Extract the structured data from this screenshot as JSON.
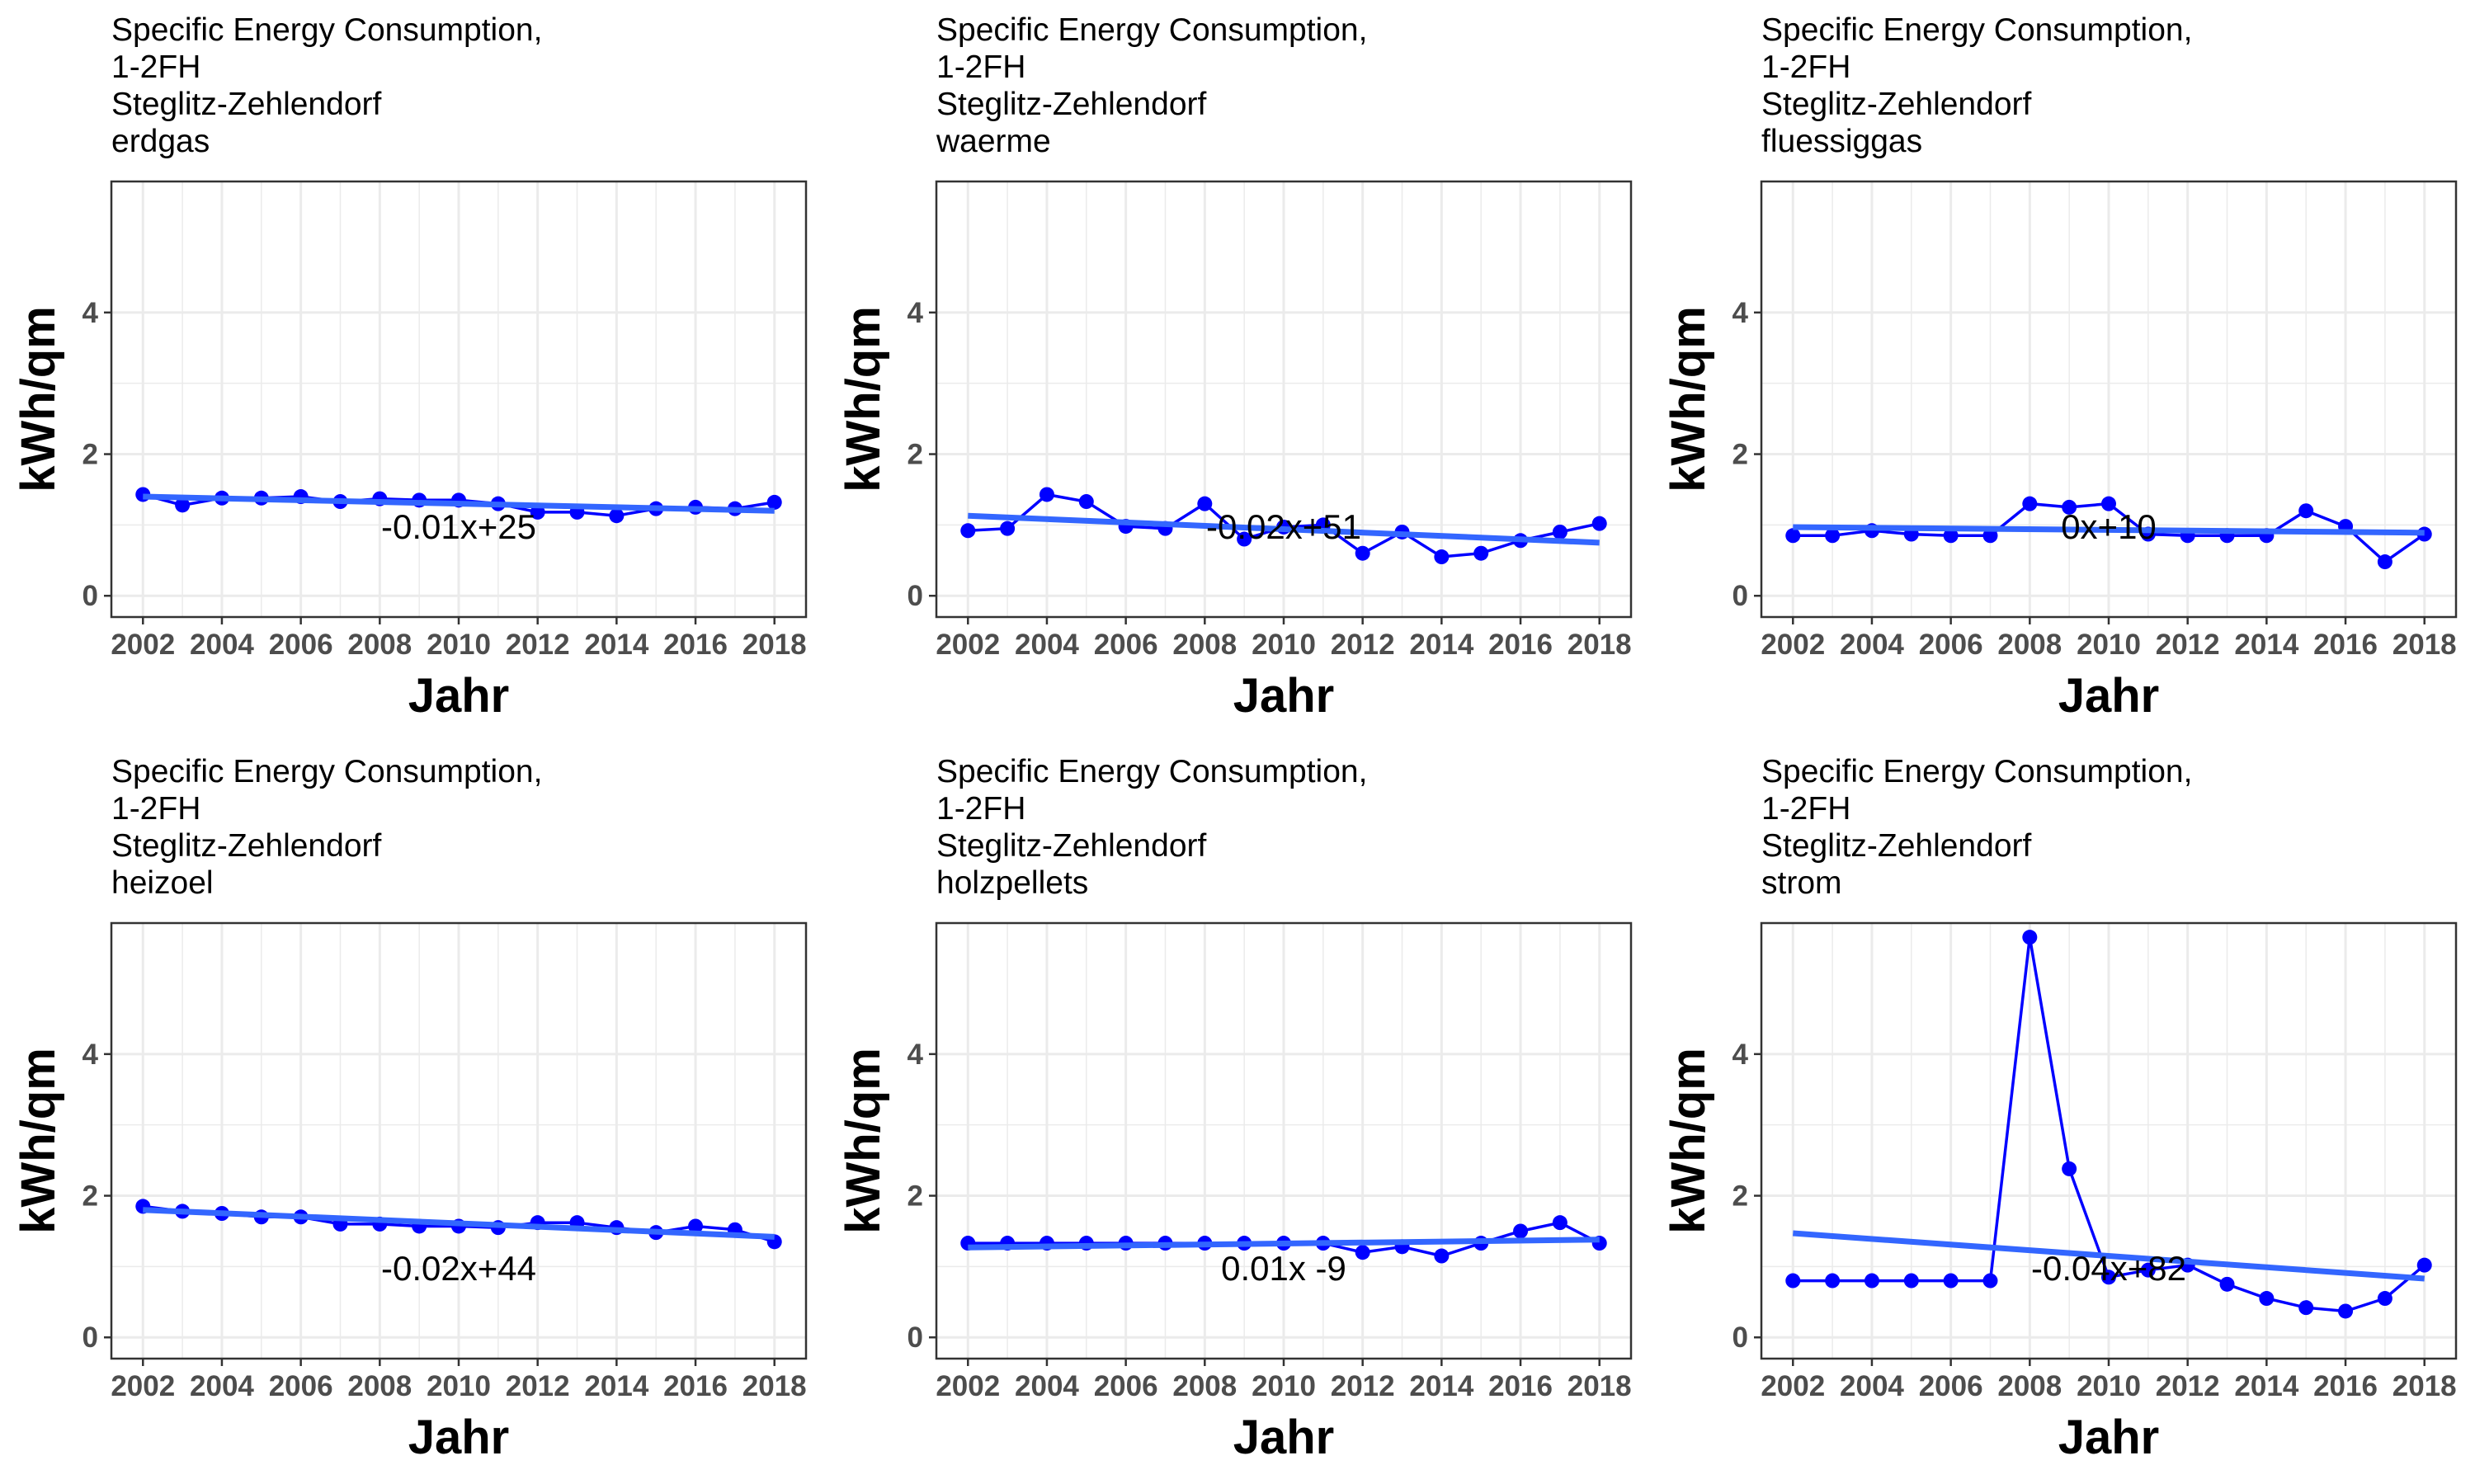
{
  "chart_data": [
    {
      "type": "line",
      "title": [
        "Specific Energy Consumption,",
        "1-2FH",
        "Steglitz-Zehlendorf",
        "erdgas"
      ],
      "xlabel": "Jahr",
      "ylabel": "kWh/qm",
      "xlim": [
        2001.2,
        2018.8
      ],
      "ylim": [
        -0.3,
        5.85
      ],
      "xticks": [
        2002,
        2004,
        2006,
        2008,
        2010,
        2012,
        2014,
        2016,
        2018
      ],
      "yticks": [
        0,
        2,
        4
      ],
      "x": [
        2002,
        2003,
        2004,
        2005,
        2006,
        2007,
        2008,
        2009,
        2010,
        2011,
        2012,
        2013,
        2014,
        2015,
        2016,
        2017,
        2018
      ],
      "values": [
        1.43,
        1.28,
        1.38,
        1.38,
        1.4,
        1.33,
        1.37,
        1.35,
        1.35,
        1.3,
        1.18,
        1.18,
        1.13,
        1.23,
        1.25,
        1.23,
        1.32
      ],
      "trend": [
        1.4,
        1.2
      ],
      "equation": "-0.01x+25",
      "equation_pos": [
        2010,
        0.97
      ]
    },
    {
      "type": "line",
      "title": [
        "Specific Energy Consumption,",
        "1-2FH",
        "Steglitz-Zehlendorf",
        "waerme"
      ],
      "xlabel": "Jahr",
      "ylabel": "kWh/qm",
      "xlim": [
        2001.2,
        2018.8
      ],
      "ylim": [
        -0.3,
        5.85
      ],
      "xticks": [
        2002,
        2004,
        2006,
        2008,
        2010,
        2012,
        2014,
        2016,
        2018
      ],
      "yticks": [
        0,
        2,
        4
      ],
      "x": [
        2002,
        2003,
        2004,
        2005,
        2006,
        2007,
        2008,
        2009,
        2010,
        2011,
        2012,
        2013,
        2014,
        2015,
        2016,
        2017,
        2018
      ],
      "values": [
        0.92,
        0.95,
        1.43,
        1.33,
        0.98,
        0.95,
        1.3,
        0.8,
        0.97,
        1.0,
        0.6,
        0.9,
        0.55,
        0.6,
        0.78,
        0.9,
        1.02
      ],
      "trend": [
        1.13,
        0.75
      ],
      "equation": "-0.02x+51",
      "equation_pos": [
        2010,
        0.97
      ]
    },
    {
      "type": "line",
      "title": [
        "Specific Energy Consumption,",
        "1-2FH",
        "Steglitz-Zehlendorf",
        "fluessiggas"
      ],
      "xlabel": "Jahr",
      "ylabel": "kWh/qm",
      "xlim": [
        2001.2,
        2018.8
      ],
      "ylim": [
        -0.3,
        5.85
      ],
      "xticks": [
        2002,
        2004,
        2006,
        2008,
        2010,
        2012,
        2014,
        2016,
        2018
      ],
      "yticks": [
        0,
        2,
        4
      ],
      "x": [
        2002,
        2003,
        2004,
        2005,
        2006,
        2007,
        2008,
        2009,
        2010,
        2011,
        2012,
        2013,
        2014,
        2015,
        2016,
        2017,
        2018
      ],
      "values": [
        0.85,
        0.85,
        0.92,
        0.87,
        0.85,
        0.85,
        1.3,
        1.25,
        1.3,
        0.87,
        0.85,
        0.85,
        0.85,
        1.2,
        0.98,
        0.48,
        0.87
      ],
      "trend": [
        0.97,
        0.89
      ],
      "equation": "0x+10",
      "equation_pos": [
        2010,
        0.97
      ]
    },
    {
      "type": "line",
      "title": [
        "Specific Energy Consumption,",
        "1-2FH",
        "Steglitz-Zehlendorf",
        "heizoel"
      ],
      "xlabel": "Jahr",
      "ylabel": "kWh/qm",
      "xlim": [
        2001.2,
        2018.8
      ],
      "ylim": [
        -0.3,
        5.85
      ],
      "xticks": [
        2002,
        2004,
        2006,
        2008,
        2010,
        2012,
        2014,
        2016,
        2018
      ],
      "yticks": [
        0,
        2,
        4
      ],
      "x": [
        2002,
        2003,
        2004,
        2005,
        2006,
        2007,
        2008,
        2009,
        2010,
        2011,
        2012,
        2013,
        2014,
        2015,
        2016,
        2017,
        2018
      ],
      "values": [
        1.85,
        1.78,
        1.75,
        1.7,
        1.7,
        1.6,
        1.6,
        1.57,
        1.57,
        1.55,
        1.62,
        1.62,
        1.55,
        1.48,
        1.57,
        1.52,
        1.35
      ],
      "trend": [
        1.8,
        1.42
      ],
      "equation": "-0.02x+44",
      "equation_pos": [
        2010,
        0.97
      ]
    },
    {
      "type": "line",
      "title": [
        "Specific Energy Consumption,",
        "1-2FH",
        "Steglitz-Zehlendorf",
        "holzpellets"
      ],
      "xlabel": "Jahr",
      "ylabel": "kWh/qm",
      "xlim": [
        2001.2,
        2018.8
      ],
      "ylim": [
        -0.3,
        5.85
      ],
      "xticks": [
        2002,
        2004,
        2006,
        2008,
        2010,
        2012,
        2014,
        2016,
        2018
      ],
      "yticks": [
        0,
        2,
        4
      ],
      "x": [
        2002,
        2003,
        2004,
        2005,
        2006,
        2007,
        2008,
        2009,
        2010,
        2011,
        2012,
        2013,
        2014,
        2015,
        2016,
        2017,
        2018
      ],
      "values": [
        1.33,
        1.33,
        1.33,
        1.33,
        1.33,
        1.33,
        1.33,
        1.33,
        1.33,
        1.33,
        1.2,
        1.28,
        1.15,
        1.33,
        1.5,
        1.62,
        1.33
      ],
      "trend": [
        1.27,
        1.38
      ],
      "equation": "0.01x -9",
      "equation_pos": [
        2010,
        0.97
      ]
    },
    {
      "type": "line",
      "title": [
        "Specific Energy Consumption,",
        "1-2FH",
        "Steglitz-Zehlendorf",
        "strom"
      ],
      "xlabel": "Jahr",
      "ylabel": "kWh/qm",
      "xlim": [
        2001.2,
        2018.8
      ],
      "ylim": [
        -0.3,
        5.85
      ],
      "xticks": [
        2002,
        2004,
        2006,
        2008,
        2010,
        2012,
        2014,
        2016,
        2018
      ],
      "yticks": [
        0,
        2,
        4
      ],
      "x": [
        2002,
        2003,
        2004,
        2005,
        2006,
        2007,
        2008,
        2009,
        2010,
        2011,
        2012,
        2013,
        2014,
        2015,
        2016,
        2017,
        2018
      ],
      "values": [
        0.8,
        0.8,
        0.8,
        0.8,
        0.8,
        0.8,
        5.65,
        2.38,
        0.85,
        0.95,
        1.02,
        0.75,
        0.55,
        0.42,
        0.37,
        0.55,
        1.02
      ],
      "trend": [
        1.47,
        0.83
      ],
      "equation": "-0.04x+82",
      "equation_pos": [
        2010,
        0.97
      ]
    }
  ],
  "colors": {
    "series": "#0000ff",
    "trend": "#3366ff",
    "grid": "#ebebeb",
    "panel_border": "#333333"
  }
}
